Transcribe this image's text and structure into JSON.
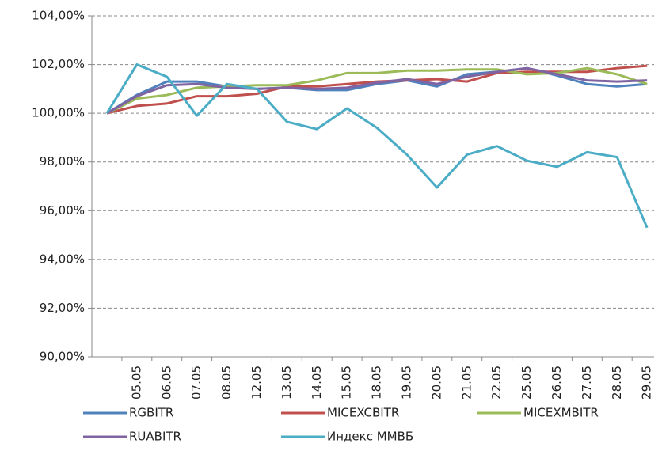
{
  "chart_data": {
    "type": "line",
    "categories": [
      null,
      "05.05",
      "06.05",
      "07.05",
      "08.05",
      "12.05",
      "13.05",
      "14.05",
      "15.05",
      "18.05",
      "19.05",
      "20.05",
      "21.05",
      "22.05",
      "25.05",
      "26.05",
      "27.05",
      "28.05",
      "29.05"
    ],
    "series": [
      {
        "name": "RGBITR",
        "color": "#4f81bd",
        "values": [
          100,
          100.75,
          101.3,
          101.3,
          101.1,
          101.0,
          101.05,
          100.95,
          100.95,
          101.2,
          101.35,
          101.1,
          101.6,
          101.7,
          101.85,
          101.55,
          101.2,
          101.1,
          101.2
        ]
      },
      {
        "name": "MICEXCBITR",
        "color": "#c0504d",
        "values": [
          100,
          100.3,
          100.4,
          100.7,
          100.7,
          100.8,
          101.1,
          101.1,
          101.2,
          101.3,
          101.35,
          101.4,
          101.3,
          101.65,
          101.7,
          101.7,
          101.7,
          101.85,
          101.95
        ]
      },
      {
        "name": "MICEXMBITR",
        "color": "#9bbb59",
        "values": [
          100,
          100.6,
          100.75,
          101.05,
          101.1,
          101.15,
          101.15,
          101.35,
          101.65,
          101.65,
          101.75,
          101.75,
          101.8,
          101.8,
          101.6,
          101.65,
          101.85,
          101.6,
          101.2
        ]
      },
      {
        "name": "RUABITR",
        "color": "#8064a2",
        "values": [
          100,
          100.7,
          101.15,
          101.2,
          101.05,
          101.0,
          101.05,
          101.0,
          101.05,
          101.25,
          101.4,
          101.2,
          101.5,
          101.7,
          101.85,
          101.6,
          101.35,
          101.3,
          101.35
        ]
      },
      {
        "name": "Индекс ММВБ",
        "color": "#4bacc6",
        "values": [
          100,
          102,
          101.5,
          99.9,
          101.2,
          101.0,
          99.65,
          99.35,
          100.2,
          99.4,
          98.3,
          96.95,
          98.3,
          98.65,
          98.05,
          97.8,
          98.4,
          98.2,
          95.3
        ]
      }
    ],
    "ylim": [
      90,
      104
    ],
    "yticks": [
      {
        "value": 90,
        "label": "90,00%"
      },
      {
        "value": 92,
        "label": "92,00%"
      },
      {
        "value": 94,
        "label": "94,00%"
      },
      {
        "value": 96,
        "label": "96,00%"
      },
      {
        "value": 98,
        "label": "98,00%"
      },
      {
        "value": 100,
        "label": "100,00%"
      },
      {
        "value": 102,
        "label": "102,00%"
      },
      {
        "value": 104,
        "label": "104,00%"
      }
    ],
    "grid": true,
    "legend": "bottom"
  }
}
